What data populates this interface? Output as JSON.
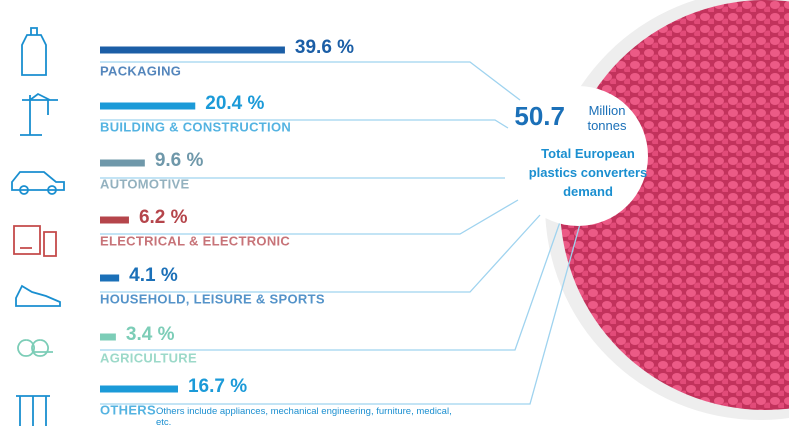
{
  "chart_data": {
    "type": "bar",
    "categories": [
      "PACKAGING",
      "BUILDING & CONSTRUCTION",
      "AUTOMOTIVE",
      "ELECTRICAL & ELECTRONIC",
      "HOUSEHOLD, LEISURE & SPORTS",
      "AGRICULTURE",
      "OTHERS"
    ],
    "values": [
      39.6,
      20.4,
      9.6,
      6.2,
      4.1,
      3.4,
      16.7
    ],
    "value_labels": [
      "39.6 %",
      "20.4 %",
      "9.6 %",
      "6.2 %",
      "4.1 %",
      "3.4 %",
      "16.7 %"
    ],
    "colors": [
      "#1b5ea6",
      "#1b9ad8",
      "#6f98aa",
      "#b5454b",
      "#1b70b8",
      "#7ccdb7",
      "#1b9ad8"
    ],
    "total": {
      "value": "50.7",
      "unit": "Million tonnes",
      "label": "Total European plastics converters demand"
    },
    "note": "Others include appliances, mechanical engineering, furniture, medical, etc."
  }
}
